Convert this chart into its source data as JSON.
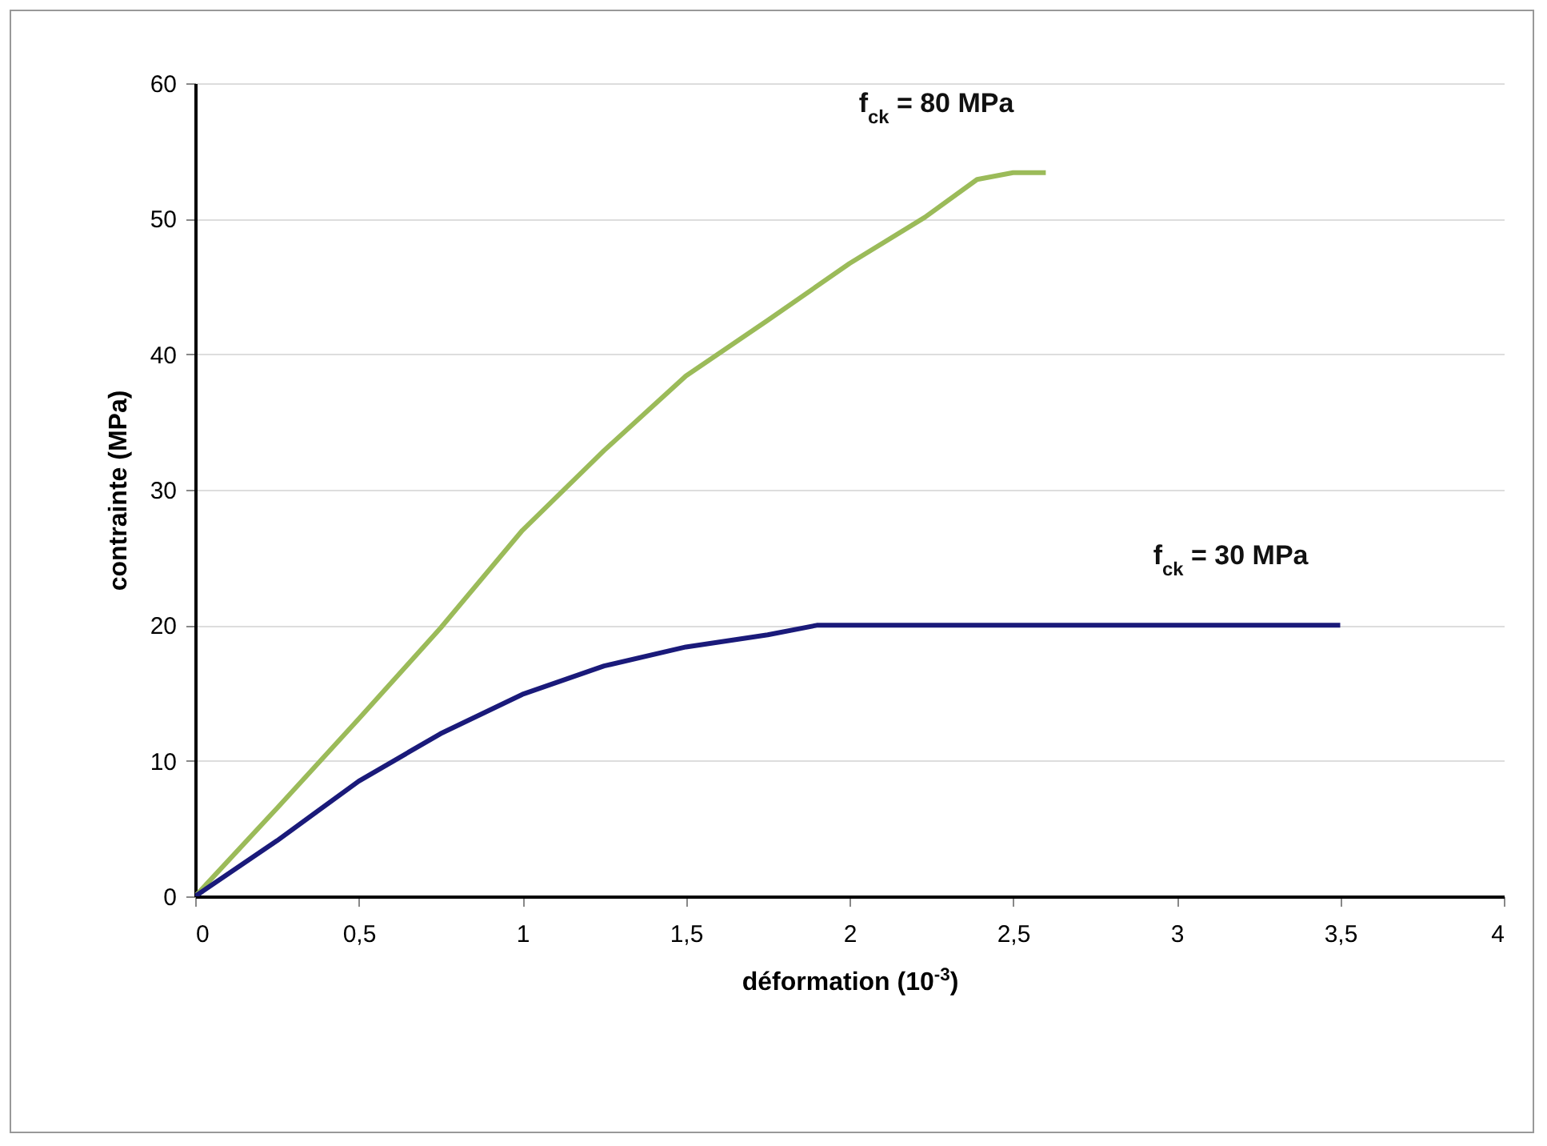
{
  "chart_data": {
    "type": "line",
    "xlabel": "déformation (10$^{-3}$)",
    "ylabel": "contrainte (MPa)",
    "xlim": [
      0,
      4
    ],
    "xticks": [
      0,
      {
        "value": 0.5,
        "label": "0,5"
      },
      1,
      {
        "value": 1.5,
        "label": "1,5"
      },
      2,
      {
        "value": 2.5,
        "label": "2,5"
      },
      3,
      {
        "value": 3.5,
        "label": "3,5"
      },
      4
    ],
    "ylim": [
      0,
      60
    ],
    "yticks": [
      0,
      10,
      20,
      30,
      40,
      50,
      60
    ],
    "grid": "y",
    "legend": false,
    "series": [
      {
        "name": "f$_{ck}$ = 80 MPa",
        "color": "#9bbb59",
        "x": [
          0,
          0.25,
          0.5,
          0.75,
          1,
          1.25,
          1.5,
          1.75,
          2,
          2.23,
          2.39,
          2.5,
          2.6
        ],
        "values": [
          0,
          6.5,
          13.1,
          19.8,
          27,
          32.9,
          38.4,
          42.5,
          46.7,
          50.1,
          52.9,
          53.4,
          53.4
        ]
      },
      {
        "name": "f$_{ck}$ = 30 MPa",
        "color": "#1a1a7a",
        "x": [
          0,
          0.25,
          0.5,
          0.75,
          1,
          1.25,
          1.5,
          1.75,
          1.9,
          2,
          3.5
        ],
        "values": [
          0,
          4.1,
          8.5,
          12,
          14.9,
          17,
          18.4,
          19.3,
          20,
          20,
          20
        ]
      }
    ]
  }
}
